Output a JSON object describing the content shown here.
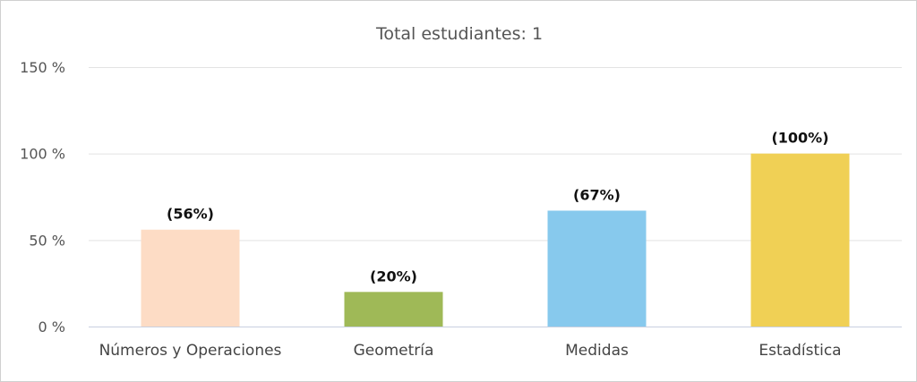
{
  "chart_data": {
    "type": "bar",
    "title": "Total estudiantes: 1",
    "xlabel": "",
    "ylabel": "",
    "categories": [
      "Números y Operaciones",
      "Geometría",
      "Medidas",
      "Estadística"
    ],
    "values": [
      56,
      20,
      67,
      100
    ],
    "data_labels": [
      "(56%)",
      "(20%)",
      "(67%)",
      "(100%)"
    ],
    "bar_colors": [
      "#fddcc5",
      "#9fb957",
      "#87c9ed",
      "#f0d055"
    ],
    "ylim": [
      0,
      150
    ],
    "y_ticks": [
      0,
      50,
      100,
      150
    ],
    "y_tick_labels": [
      "0 %",
      "50 %",
      "100 %",
      "150 %"
    ],
    "grid": true,
    "legend": "none"
  }
}
